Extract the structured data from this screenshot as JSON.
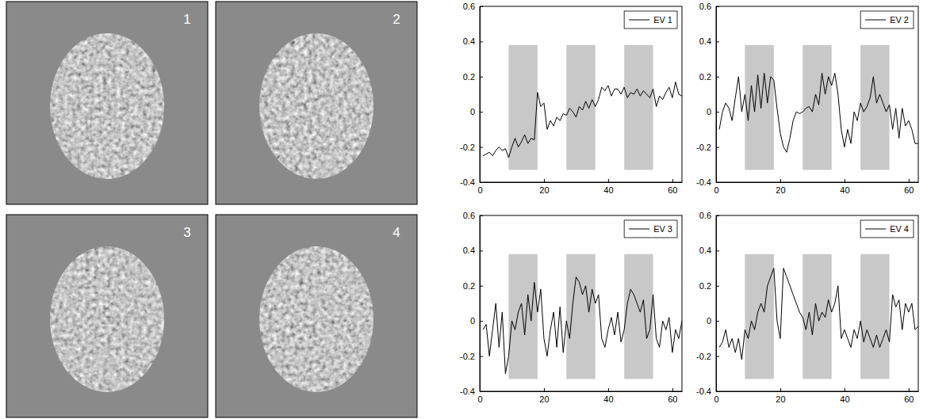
{
  "images": [
    {
      "label": "1"
    },
    {
      "label": "2"
    },
    {
      "label": "3"
    },
    {
      "label": "4"
    }
  ],
  "chart_data": [
    {
      "type": "line",
      "legend": "upper right",
      "x": [
        1,
        2,
        3,
        4,
        5,
        6,
        7,
        8,
        9,
        10,
        11,
        12,
        13,
        14,
        15,
        16,
        17,
        18,
        19,
        20,
        21,
        22,
        23,
        24,
        25,
        26,
        27,
        28,
        29,
        30,
        31,
        32,
        33,
        34,
        35,
        36,
        37,
        38,
        39,
        40,
        41,
        42,
        43,
        44,
        45,
        46,
        47,
        48,
        49,
        50,
        51,
        52,
        53,
        54,
        55,
        56,
        57,
        58,
        59,
        60,
        61,
        62,
        63
      ],
      "xlim": [
        0,
        63
      ],
      "xticks": [
        0,
        20,
        40,
        60
      ],
      "ylim": [
        -0.4,
        0.6
      ],
      "yticks": [
        -0.4,
        -0.2,
        0,
        0.2,
        0.4,
        0.6
      ],
      "blocks": [
        {
          "x": [
            9,
            18
          ],
          "y": [
            -0.33,
            0.38
          ]
        },
        {
          "x": [
            27,
            36
          ],
          "y": [
            -0.33,
            0.38
          ]
        },
        {
          "x": [
            45,
            54
          ],
          "y": [
            -0.33,
            0.38
          ]
        }
      ],
      "series": [
        {
          "name": "EV 1",
          "color": "#000000",
          "values": [
            -0.25,
            -0.24,
            -0.23,
            -0.25,
            -0.22,
            -0.2,
            -0.22,
            -0.21,
            -0.26,
            -0.2,
            -0.15,
            -0.2,
            -0.17,
            -0.13,
            -0.18,
            -0.15,
            -0.16,
            0.11,
            0.03,
            0.05,
            -0.1,
            -0.05,
            -0.08,
            -0.03,
            -0.05,
            -0.01,
            -0.02,
            0.02,
            0.0,
            -0.03,
            0.03,
            0.01,
            0.06,
            0.02,
            0.07,
            0.03,
            0.07,
            0.14,
            0.12,
            0.15,
            0.09,
            0.13,
            0.13,
            0.1,
            0.14,
            0.08,
            0.11,
            0.1,
            0.13,
            0.09,
            0.12,
            0.1,
            0.08,
            0.13,
            0.03,
            0.09,
            0.07,
            0.11,
            0.14,
            0.08,
            0.17,
            0.1,
            0.09
          ]
        }
      ]
    },
    {
      "type": "line",
      "legend": "upper right",
      "x": [
        1,
        2,
        3,
        4,
        5,
        6,
        7,
        8,
        9,
        10,
        11,
        12,
        13,
        14,
        15,
        16,
        17,
        18,
        19,
        20,
        21,
        22,
        23,
        24,
        25,
        26,
        27,
        28,
        29,
        30,
        31,
        32,
        33,
        34,
        35,
        36,
        37,
        38,
        39,
        40,
        41,
        42,
        43,
        44,
        45,
        46,
        47,
        48,
        49,
        50,
        51,
        52,
        53,
        54,
        55,
        56,
        57,
        58,
        59,
        60,
        61,
        62,
        63
      ],
      "xlim": [
        0,
        63
      ],
      "xticks": [
        0,
        20,
        40,
        60
      ],
      "ylim": [
        -0.4,
        0.6
      ],
      "yticks": [
        -0.4,
        -0.2,
        0,
        0.2,
        0.4,
        0.6
      ],
      "blocks": [
        {
          "x": [
            9,
            18
          ],
          "y": [
            -0.33,
            0.38
          ]
        },
        {
          "x": [
            27,
            36
          ],
          "y": [
            -0.33,
            0.38
          ]
        },
        {
          "x": [
            45,
            54
          ],
          "y": [
            -0.33,
            0.38
          ]
        }
      ],
      "series": [
        {
          "name": "EV 2",
          "color": "#000000",
          "values": [
            -0.1,
            0.0,
            0.05,
            0.02,
            -0.05,
            0.08,
            0.2,
            0.0,
            0.1,
            -0.05,
            0.15,
            0.0,
            0.21,
            0.02,
            0.22,
            0.05,
            0.2,
            0.18,
            0.02,
            -0.12,
            -0.2,
            -0.23,
            -0.15,
            -0.05,
            0.0,
            -0.01,
            0.0,
            0.02,
            0.03,
            0.0,
            0.1,
            0.04,
            0.22,
            0.1,
            0.2,
            0.15,
            0.22,
            0.1,
            -0.1,
            -0.2,
            -0.1,
            -0.18,
            0.0,
            -0.05,
            0.05,
            0.0,
            0.03,
            0.08,
            0.2,
            0.05,
            0.1,
            0.05,
            0.0,
            0.04,
            -0.1,
            0.02,
            -0.15,
            0.02,
            -0.08,
            -0.05,
            -0.1,
            -0.18,
            -0.18
          ]
        }
      ]
    },
    {
      "type": "line",
      "legend": "upper right",
      "x": [
        1,
        2,
        3,
        4,
        5,
        6,
        7,
        8,
        9,
        10,
        11,
        12,
        13,
        14,
        15,
        16,
        17,
        18,
        19,
        20,
        21,
        22,
        23,
        24,
        25,
        26,
        27,
        28,
        29,
        30,
        31,
        32,
        33,
        34,
        35,
        36,
        37,
        38,
        39,
        40,
        41,
        42,
        43,
        44,
        45,
        46,
        47,
        48,
        49,
        50,
        51,
        52,
        53,
        54,
        55,
        56,
        57,
        58,
        59,
        60,
        61,
        62,
        63
      ],
      "xlim": [
        0,
        63
      ],
      "xticks": [
        0,
        20,
        40,
        60
      ],
      "ylim": [
        -0.4,
        0.6
      ],
      "yticks": [
        -0.4,
        -0.2,
        0,
        0.2,
        0.4,
        0.6
      ],
      "blocks": [
        {
          "x": [
            9,
            18
          ],
          "y": [
            -0.33,
            0.38
          ]
        },
        {
          "x": [
            27,
            36
          ],
          "y": [
            -0.33,
            0.38
          ]
        },
        {
          "x": [
            45,
            54
          ],
          "y": [
            -0.33,
            0.38
          ]
        }
      ],
      "series": [
        {
          "name": "EV 3",
          "color": "#000000",
          "values": [
            -0.05,
            -0.02,
            -0.2,
            -0.05,
            0.1,
            -0.15,
            0.05,
            -0.3,
            -0.2,
            0.0,
            -0.05,
            0.05,
            0.1,
            -0.08,
            0.15,
            0.0,
            0.22,
            0.05,
            0.18,
            -0.1,
            -0.2,
            -0.05,
            0.05,
            -0.15,
            0.08,
            -0.18,
            0.0,
            -0.1,
            0.1,
            0.25,
            0.22,
            0.15,
            0.2,
            0.05,
            0.18,
            0.1,
            0.15,
            -0.1,
            -0.15,
            -0.05,
            0.02,
            -0.08,
            0.05,
            -0.12,
            -0.05,
            0.1,
            0.18,
            0.15,
            0.1,
            0.05,
            0.12,
            -0.1,
            -0.05,
            0.15,
            -0.1,
            -0.15,
            0.0,
            -0.05,
            0.02,
            -0.18,
            -0.05,
            -0.1,
            0.0
          ]
        }
      ]
    },
    {
      "type": "line",
      "legend": "upper right",
      "x": [
        1,
        2,
        3,
        4,
        5,
        6,
        7,
        8,
        9,
        10,
        11,
        12,
        13,
        14,
        15,
        16,
        17,
        18,
        19,
        20,
        21,
        22,
        23,
        24,
        25,
        26,
        27,
        28,
        29,
        30,
        31,
        32,
        33,
        34,
        35,
        36,
        37,
        38,
        39,
        40,
        41,
        42,
        43,
        44,
        45,
        46,
        47,
        48,
        49,
        50,
        51,
        52,
        53,
        54,
        55,
        56,
        57,
        58,
        59,
        60,
        61,
        62,
        63
      ],
      "xlim": [
        0,
        63
      ],
      "xticks": [
        0,
        20,
        40,
        60
      ],
      "ylim": [
        -0.4,
        0.6
      ],
      "yticks": [
        -0.4,
        -0.2,
        0,
        0.2,
        0.4,
        0.6
      ],
      "blocks": [
        {
          "x": [
            9,
            18
          ],
          "y": [
            -0.33,
            0.38
          ]
        },
        {
          "x": [
            27,
            36
          ],
          "y": [
            -0.33,
            0.38
          ]
        },
        {
          "x": [
            45,
            54
          ],
          "y": [
            -0.33,
            0.38
          ]
        }
      ],
      "series": [
        {
          "name": "EV 4",
          "color": "#000000",
          "values": [
            -0.15,
            -0.12,
            -0.05,
            -0.15,
            -0.1,
            -0.18,
            -0.1,
            -0.22,
            -0.05,
            -0.1,
            0.0,
            -0.05,
            0.05,
            0.1,
            0.05,
            0.2,
            0.25,
            0.3,
            0.0,
            -0.1,
            0.3,
            0.25,
            0.2,
            0.15,
            0.1,
            0.05,
            0.02,
            -0.05,
            0.05,
            -0.08,
            0.1,
            0.0,
            0.05,
            0.02,
            0.12,
            0.05,
            0.1,
            0.2,
            -0.1,
            -0.05,
            -0.1,
            -0.15,
            -0.05,
            -0.1,
            0.0,
            -0.12,
            -0.05,
            -0.1,
            -0.15,
            -0.08,
            -0.15,
            -0.1,
            -0.05,
            -0.12,
            0.15,
            0.08,
            0.12,
            -0.05,
            0.1,
            0.05,
            0.1,
            -0.05,
            -0.03
          ]
        }
      ]
    }
  ]
}
